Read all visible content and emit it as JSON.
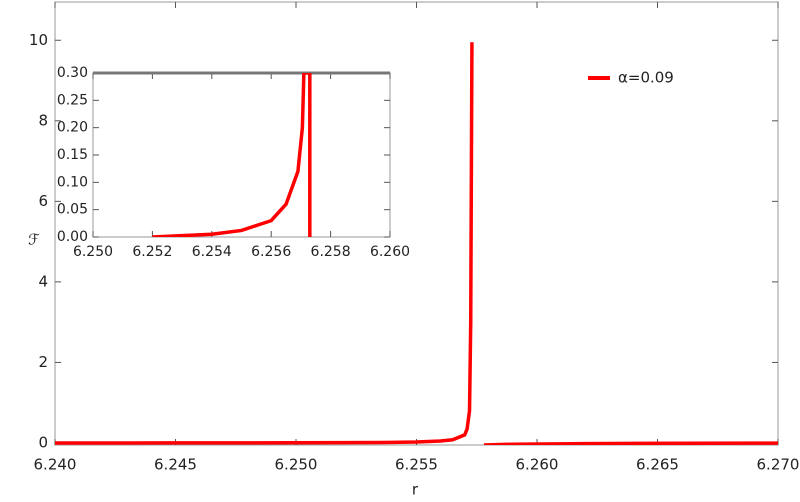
{
  "chart_data": [
    {
      "type": "line",
      "x_label": "r",
      "y_label": "ℱ",
      "xlim": [
        6.24,
        6.27
      ],
      "xticks": [
        {
          "value": 6.24,
          "label": "6.240"
        },
        6.245,
        {
          "value": 6.25,
          "label": "6.250"
        },
        6.255,
        {
          "value": 6.26,
          "label": "6.260"
        },
        6.265,
        {
          "value": 6.27,
          "label": "6.270"
        }
      ],
      "ylim": [
        -0.05,
        10.95
      ],
      "yticks": [
        0,
        2,
        4,
        6,
        8,
        10
      ],
      "legend": "top-right",
      "series": [
        {
          "name": "α=0.09",
          "color": "#ff0000",
          "x": [
            6.24,
            6.245,
            6.25,
            6.252,
            6.254,
            6.255,
            6.256,
            6.2565,
            6.257,
            6.2571,
            6.2572,
            6.25725,
            6.2573,
            6.2573,
            6.2578,
            6.259,
            6.262,
            6.266,
            6.27
          ],
          "values": [
            0.0,
            0.002,
            0.005,
            0.008,
            0.015,
            0.025,
            0.05,
            0.08,
            0.2,
            0.35,
            0.8,
            3,
            9.95,
            null,
            -0.05,
            -0.03,
            -0.015,
            -0.007,
            -0.003
          ]
        }
      ]
    },
    {
      "type": "line",
      "xlim": [
        6.25,
        6.26
      ],
      "xticks": [
        {
          "value": 6.25,
          "label": "6.250"
        },
        6.252,
        6.254,
        6.256,
        6.258,
        {
          "value": 6.26,
          "label": "6.260"
        }
      ],
      "ylim": [
        0,
        0.3
      ],
      "yticks": [
        {
          "value": 0,
          "label": "0.00"
        },
        0.05,
        {
          "value": 0.1,
          "label": "0.10"
        },
        0.15,
        {
          "value": 0.2,
          "label": "0.20"
        },
        0.25,
        {
          "value": 0.3,
          "label": "0.30"
        }
      ],
      "series": [
        {
          "color": "#ff0000",
          "x": [
            6.252,
            6.254,
            6.255,
            6.256,
            6.2565,
            6.2569,
            6.25705,
            6.2571,
            6.2573,
            6.2573,
            6.2573
          ],
          "values": [
            0.0,
            0.005,
            0.012,
            0.03,
            0.06,
            0.12,
            0.2,
            0.3,
            0.3,
            0.3,
            0.0
          ]
        }
      ]
    }
  ]
}
